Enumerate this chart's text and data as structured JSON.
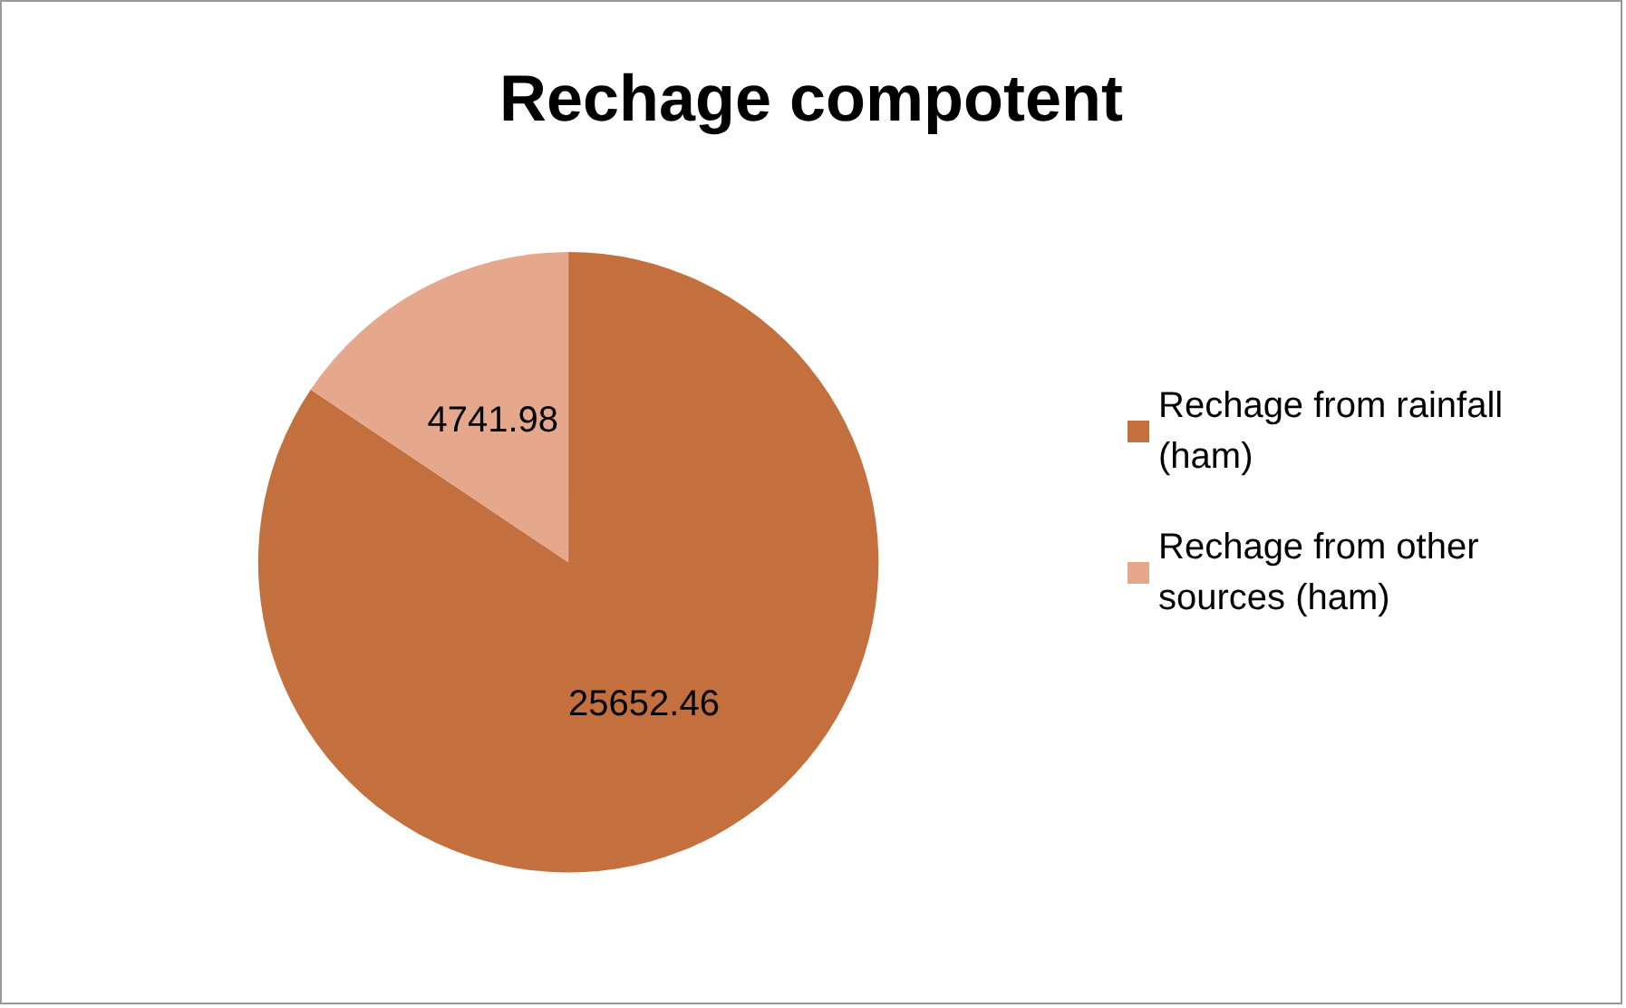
{
  "chart_data": {
    "type": "pie",
    "title": "Rechage compotent",
    "categories": [
      "Rechage from rainfall (ham)",
      "Rechage from other sources (ham)"
    ],
    "values": [
      25652.46,
      4741.98
    ],
    "colors": [
      "#c3703e",
      "#e6a88c"
    ],
    "data_labels": true,
    "legend": "right"
  }
}
